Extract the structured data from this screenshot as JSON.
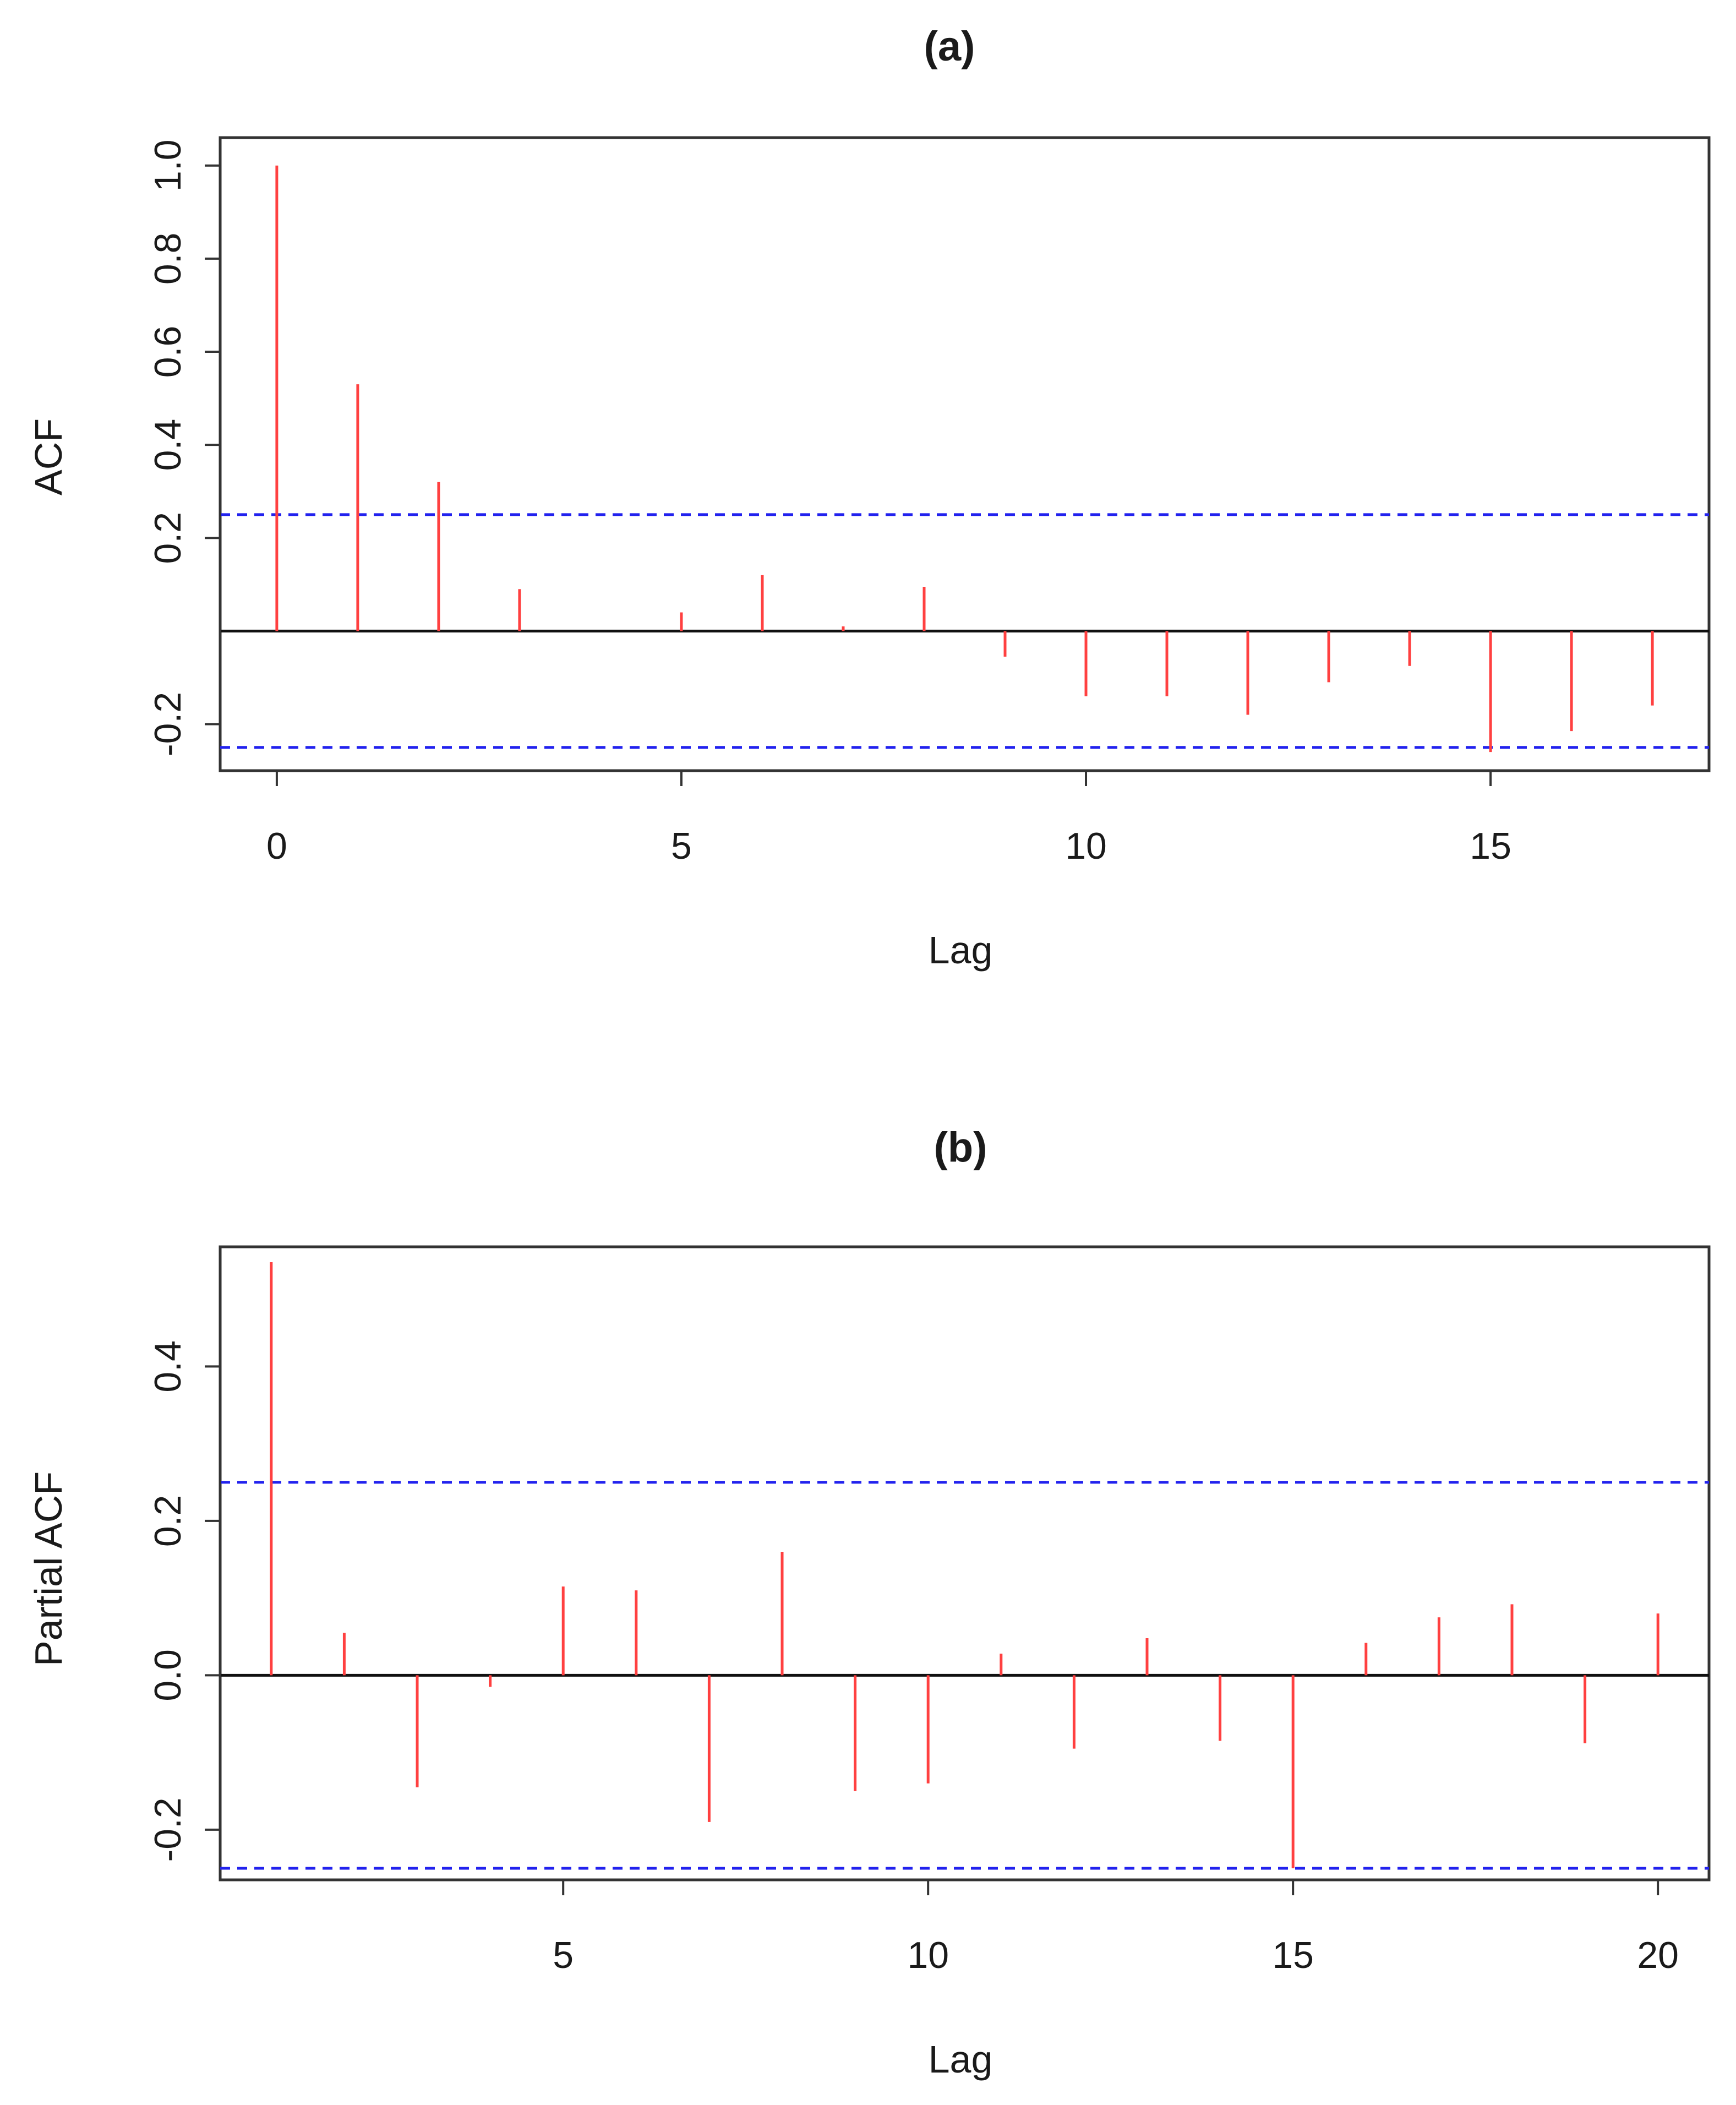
{
  "figure_labels": {
    "panel_a": "(a)",
    "panel_b": "(b)"
  },
  "colors": {
    "spike": "#ff4040",
    "confidence": "#2222ee",
    "frame": "#333333",
    "zero_line": "#111111"
  },
  "chart_data": [
    {
      "type": "bar",
      "subtype": "acf",
      "title": "(a)",
      "xlabel": "Lag",
      "ylabel": "ACF",
      "xlim": [
        -0.7,
        17.7
      ],
      "ylim": [
        -0.3,
        1.06
      ],
      "x_ticks": [
        0,
        5,
        10,
        15
      ],
      "x_tick_labels": [
        "0",
        "5",
        "10",
        "15"
      ],
      "y_ticks": [
        -0.2,
        0.2,
        0.4,
        0.6,
        0.8,
        1.0
      ],
      "y_tick_labels": [
        "-0.2",
        "0.2",
        "0.4",
        "0.6",
        "0.8",
        "1.0"
      ],
      "confidence_bounds": [
        0.25,
        -0.25
      ],
      "x": [
        0,
        1,
        2,
        3,
        4,
        5,
        6,
        7,
        8,
        9,
        10,
        11,
        12,
        13,
        14,
        15,
        16,
        17
      ],
      "values": [
        1.0,
        0.53,
        0.32,
        0.09,
        0.0,
        0.04,
        0.12,
        0.01,
        0.095,
        -0.055,
        -0.14,
        -0.14,
        -0.18,
        -0.11,
        -0.075,
        -0.26,
        -0.215,
        -0.16
      ]
    },
    {
      "type": "bar",
      "subtype": "pacf",
      "title": "(b)",
      "xlabel": "Lag",
      "ylabel": "Partial ACF",
      "xlim": [
        0.3,
        20.7
      ],
      "ylim": [
        -0.265,
        0.555
      ],
      "x_ticks": [
        5,
        10,
        15,
        20
      ],
      "x_tick_labels": [
        "5",
        "10",
        "15",
        "20"
      ],
      "y_ticks": [
        -0.2,
        0.0,
        0.2,
        0.4
      ],
      "y_tick_labels": [
        "-0.2",
        "0.0",
        "0.2",
        "0.4"
      ],
      "confidence_bounds": [
        0.25,
        -0.25
      ],
      "x": [
        1,
        2,
        3,
        4,
        5,
        6,
        7,
        8,
        9,
        10,
        11,
        12,
        13,
        14,
        15,
        16,
        17,
        18,
        19,
        20
      ],
      "values": [
        0.535,
        0.055,
        -0.145,
        -0.015,
        0.115,
        0.11,
        -0.19,
        0.16,
        -0.15,
        -0.14,
        0.028,
        -0.095,
        0.048,
        -0.085,
        -0.25,
        0.042,
        0.075,
        0.092,
        -0.088,
        0.08
      ]
    }
  ]
}
